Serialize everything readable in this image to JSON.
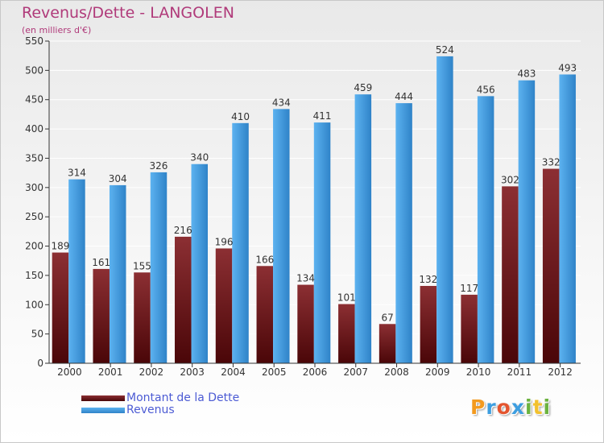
{
  "chart_data": {
    "type": "bar",
    "title": "Revenus/Dette - LANGOLEN",
    "subtitle": "(en milliers d'€)",
    "categories": [
      "2000",
      "2001",
      "2002",
      "2003",
      "2004",
      "2005",
      "2006",
      "2007",
      "2008",
      "2009",
      "2010",
      "2011",
      "2012"
    ],
    "series": [
      {
        "name": "Montant de la Dette",
        "values": [
          189,
          161,
          155,
          216,
          196,
          166,
          134,
          101,
          67,
          132,
          117,
          302,
          332
        ],
        "color": "#7a1e22"
      },
      {
        "name": "Revenus",
        "values": [
          314,
          304,
          326,
          340,
          410,
          434,
          411,
          459,
          444,
          524,
          456,
          483,
          493
        ],
        "color": "#4aa3e6"
      }
    ],
    "ylim": [
      0,
      550
    ],
    "yticks": [
      0,
      50,
      100,
      150,
      200,
      250,
      300,
      350,
      400,
      450,
      500,
      550
    ],
    "grid": true,
    "legend": "bottom-left"
  },
  "logo": {
    "letters": [
      "P",
      "r",
      "o",
      "x",
      "i",
      "t",
      "i"
    ],
    "colors": [
      "#f39a1f",
      "#3d9ee0",
      "#e4552f",
      "#3d9ee0",
      "#6cb33f",
      "#f2c12e",
      "#6cb33f"
    ]
  }
}
